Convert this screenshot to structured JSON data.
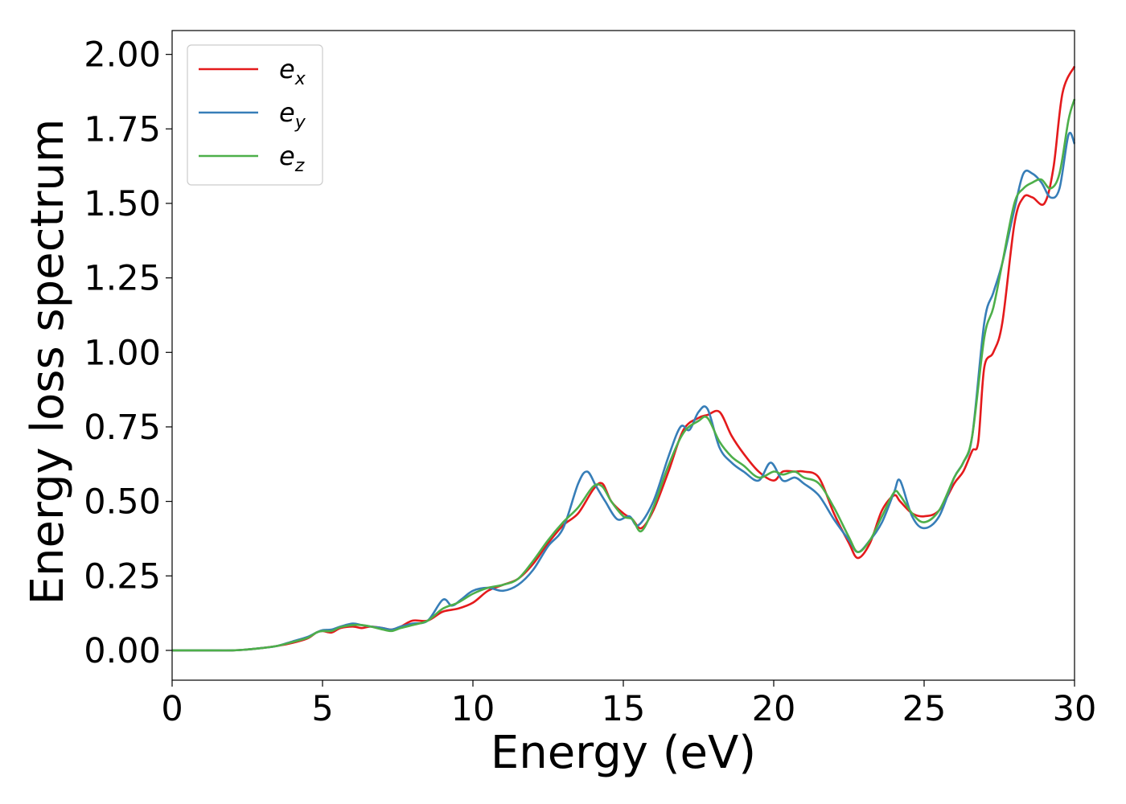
{
  "chart_data": {
    "type": "line",
    "title": "",
    "xlabel": "Energy (eV)",
    "ylabel": "Energy loss spectrum",
    "xlim": [
      0,
      30
    ],
    "ylim": [
      -0.1,
      2.08
    ],
    "xticks": [
      0,
      5,
      10,
      15,
      20,
      25,
      30
    ],
    "xtick_labels": [
      "0",
      "5",
      "10",
      "15",
      "20",
      "25",
      "30"
    ],
    "yticks": [
      0.0,
      0.25,
      0.5,
      0.75,
      1.0,
      1.25,
      1.5,
      1.75,
      2.0
    ],
    "ytick_labels": [
      "0.00",
      "0.25",
      "0.50",
      "0.75",
      "1.00",
      "1.25",
      "1.50",
      "1.75",
      "2.00"
    ],
    "grid": false,
    "legend_position": "top-left",
    "series": [
      {
        "name": "e_x",
        "label_base": "e",
        "label_sub": "x",
        "color": "#e41a1c",
        "x": [
          0,
          1,
          2,
          2.5,
          3,
          3.5,
          4,
          4.5,
          4.8,
          5,
          5.3,
          5.6,
          6,
          6.3,
          6.6,
          7,
          7.3,
          7.6,
          8,
          8.5,
          9,
          9.5,
          10,
          10.5,
          11,
          11.5,
          12,
          12.5,
          13,
          13.5,
          14,
          14.3,
          14.6,
          15,
          15.3,
          15.6,
          16,
          16.5,
          17,
          17.5,
          17.8,
          18.2,
          18.6,
          19,
          19.5,
          20,
          20.3,
          20.7,
          21,
          21.5,
          22,
          22.5,
          22.8,
          23.2,
          23.6,
          24,
          24.2,
          24.6,
          25,
          25.5,
          26,
          26.3,
          26.6,
          26.8,
          27,
          27.3,
          27.6,
          28,
          28.3,
          28.6,
          29,
          29.3,
          29.6,
          30
        ],
        "values": [
          0,
          0,
          0,
          0.003,
          0.008,
          0.015,
          0.025,
          0.04,
          0.06,
          0.065,
          0.06,
          0.075,
          0.08,
          0.075,
          0.08,
          0.075,
          0.07,
          0.08,
          0.1,
          0.1,
          0.13,
          0.14,
          0.16,
          0.2,
          0.22,
          0.24,
          0.29,
          0.36,
          0.42,
          0.46,
          0.54,
          0.56,
          0.5,
          0.46,
          0.44,
          0.41,
          0.47,
          0.6,
          0.74,
          0.78,
          0.79,
          0.8,
          0.72,
          0.66,
          0.6,
          0.57,
          0.6,
          0.6,
          0.6,
          0.58,
          0.46,
          0.36,
          0.31,
          0.36,
          0.47,
          0.52,
          0.5,
          0.46,
          0.45,
          0.47,
          0.56,
          0.6,
          0.67,
          0.7,
          0.95,
          1.0,
          1.1,
          1.43,
          1.52,
          1.52,
          1.5,
          1.62,
          1.87,
          1.96
        ]
      },
      {
        "name": "e_y",
        "label_base": "e",
        "label_sub": "y",
        "color": "#377eb8",
        "x": [
          0,
          1,
          2,
          2.5,
          3,
          3.5,
          4,
          4.5,
          4.8,
          5,
          5.3,
          5.6,
          6,
          6.3,
          6.6,
          7,
          7.3,
          7.6,
          8,
          8.5,
          9,
          9.3,
          9.6,
          10,
          10.5,
          11,
          11.5,
          12,
          12.5,
          13,
          13.5,
          13.8,
          14.1,
          14.4,
          14.8,
          15.2,
          15.5,
          16,
          16.5,
          16.9,
          17.2,
          17.5,
          17.8,
          18.2,
          18.6,
          19,
          19.5,
          19.9,
          20.3,
          20.7,
          21,
          21.5,
          22,
          22.5,
          22.8,
          23.2,
          23.6,
          24,
          24.2,
          24.6,
          25,
          25.5,
          26,
          26.3,
          26.6,
          27,
          27.3,
          27.6,
          28,
          28.3,
          28.6,
          28.9,
          29.2,
          29.5,
          29.8,
          30
        ],
        "values": [
          0,
          0,
          0,
          0.003,
          0.008,
          0.015,
          0.03,
          0.045,
          0.06,
          0.068,
          0.07,
          0.08,
          0.09,
          0.085,
          0.08,
          0.075,
          0.07,
          0.08,
          0.09,
          0.1,
          0.17,
          0.15,
          0.17,
          0.2,
          0.21,
          0.2,
          0.22,
          0.27,
          0.35,
          0.41,
          0.56,
          0.6,
          0.55,
          0.5,
          0.44,
          0.45,
          0.42,
          0.5,
          0.65,
          0.75,
          0.74,
          0.8,
          0.81,
          0.68,
          0.63,
          0.6,
          0.57,
          0.63,
          0.57,
          0.58,
          0.56,
          0.52,
          0.44,
          0.37,
          0.33,
          0.37,
          0.43,
          0.53,
          0.57,
          0.45,
          0.41,
          0.45,
          0.58,
          0.63,
          0.72,
          1.1,
          1.2,
          1.3,
          1.48,
          1.6,
          1.6,
          1.57,
          1.52,
          1.55,
          1.73,
          1.7
        ]
      },
      {
        "name": "e_z",
        "label_base": "e",
        "label_sub": "z",
        "color": "#4daf4a",
        "x": [
          0,
          1,
          2,
          2.5,
          3,
          3.5,
          4,
          4.5,
          4.8,
          5,
          5.3,
          5.6,
          6,
          6.3,
          6.6,
          7,
          7.3,
          7.6,
          8,
          8.5,
          9,
          9.5,
          10,
          10.5,
          11,
          11.5,
          12,
          12.5,
          13,
          13.5,
          14,
          14.3,
          14.6,
          15,
          15.3,
          15.6,
          16,
          16.5,
          17,
          17.5,
          17.8,
          18.2,
          18.6,
          19,
          19.5,
          20,
          20.3,
          20.7,
          21,
          21.5,
          22,
          22.5,
          22.8,
          23.2,
          23.6,
          24,
          24.2,
          24.6,
          25,
          25.5,
          26,
          26.3,
          26.6,
          27,
          27.3,
          27.6,
          28,
          28.3,
          28.6,
          28.9,
          29.2,
          29.5,
          29.8,
          30
        ],
        "values": [
          0,
          0,
          0,
          0.003,
          0.008,
          0.015,
          0.028,
          0.042,
          0.06,
          0.065,
          0.065,
          0.078,
          0.085,
          0.085,
          0.08,
          0.07,
          0.065,
          0.075,
          0.085,
          0.1,
          0.14,
          0.16,
          0.19,
          0.21,
          0.22,
          0.24,
          0.3,
          0.37,
          0.43,
          0.48,
          0.55,
          0.55,
          0.5,
          0.45,
          0.44,
          0.4,
          0.48,
          0.62,
          0.73,
          0.77,
          0.78,
          0.7,
          0.65,
          0.62,
          0.58,
          0.6,
          0.59,
          0.6,
          0.58,
          0.56,
          0.48,
          0.38,
          0.33,
          0.37,
          0.45,
          0.53,
          0.52,
          0.46,
          0.43,
          0.47,
          0.58,
          0.63,
          0.72,
          1.05,
          1.15,
          1.3,
          1.5,
          1.55,
          1.57,
          1.58,
          1.55,
          1.6,
          1.78,
          1.85
        ]
      }
    ]
  }
}
